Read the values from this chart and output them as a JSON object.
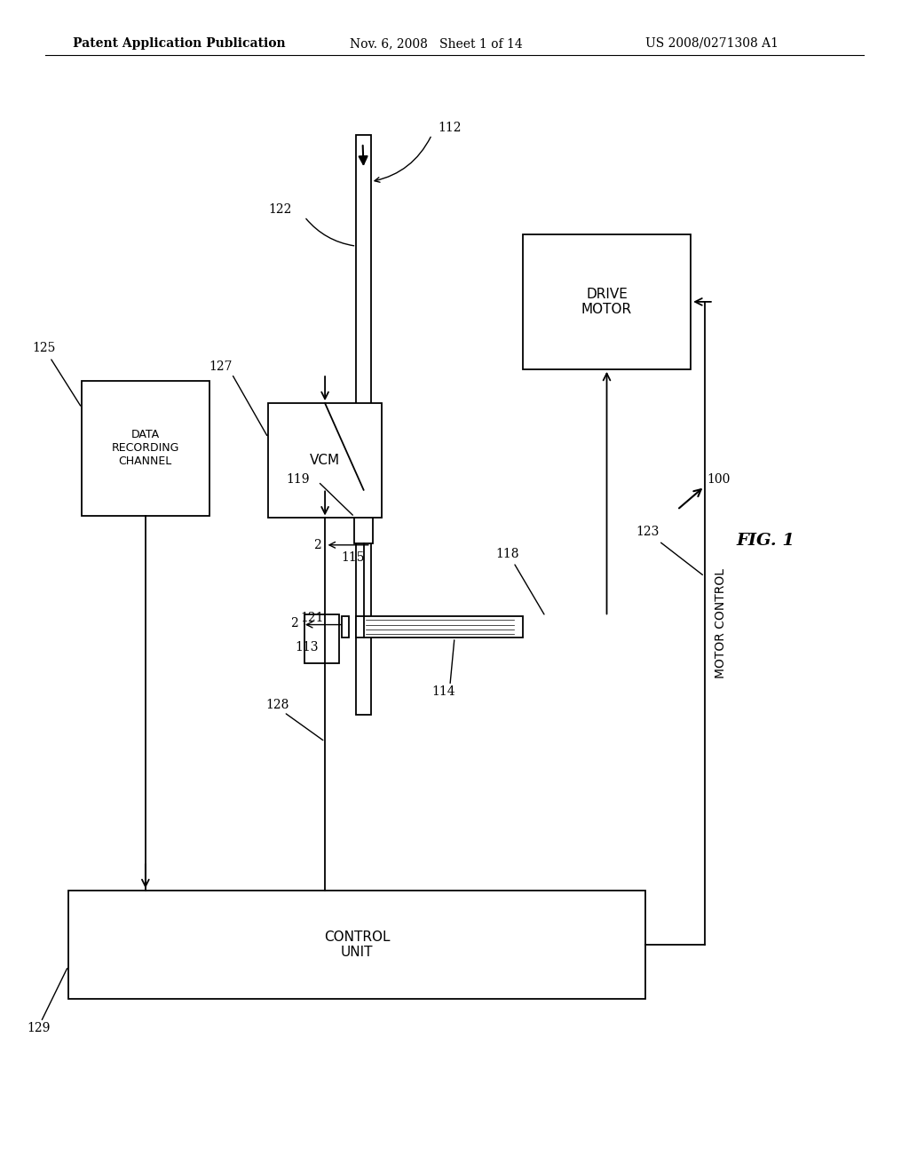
{
  "background_color": "#ffffff",
  "header_left": "Patent Application Publication",
  "header_center": "Nov. 6, 2008   Sheet 1 of 14",
  "header_right": "US 2008/0271308 A1",
  "fig_label": "FIG. 1"
}
